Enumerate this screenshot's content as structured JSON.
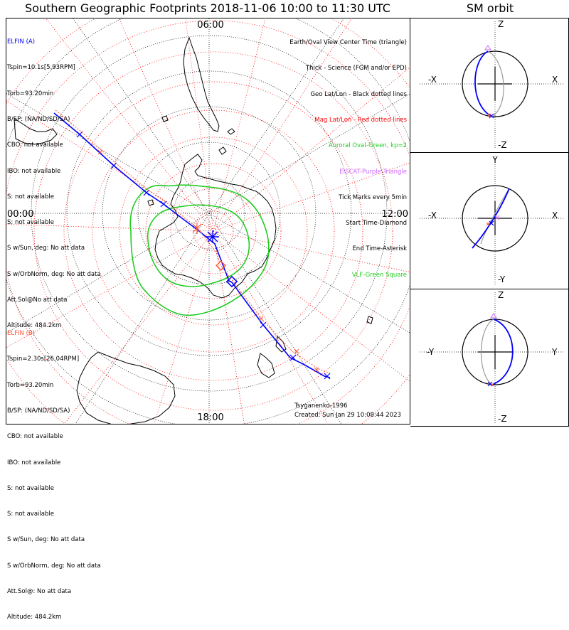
{
  "title": "Southern Geographic Footprints 2018-11-06 10:00 to 11:30 UTC",
  "sm_title": "SM orbit",
  "map": {
    "time_labels": {
      "top": "06:00",
      "left": "00:00",
      "right": "12:00",
      "bottom": "18:00"
    }
  },
  "elfin_a": {
    "name": "ELFIN (A)",
    "color": "#0000ff",
    "lines": [
      "Tspin=10.1s[5.93RPM]",
      "Torb=93.20min",
      "B/SP: (NA/ND/SD/SA)",
      "CBO: not available",
      "IBO: not available",
      "S: not available",
      "S: not available",
      "S w/Sun, deg: No att data",
      "S w/OrbNorm, deg: No att data",
      "Att.Sol@No att data",
      "Altitude: 484.2km"
    ]
  },
  "elfin_b": {
    "name": "ELFIN (B)",
    "color": "#ff5533",
    "lines": [
      "Tspin=2.30s[26.04RPM]",
      "Torb=93.20min",
      "B/SP: (NA/ND/SD/SA)",
      "CBO: not available",
      "IBO: not available",
      "S: not available",
      "S: not available",
      "S w/Sun, deg: No att data",
      "S w/OrbNorm, deg: No att data",
      "Att.Sol@: No att data",
      "Altitude: 484.2km"
    ]
  },
  "legend": [
    {
      "text": "Earth/Oval View Center Time (triangle)",
      "color": "#000000"
    },
    {
      "text": "Thick - Science (FGM and/or EPD)",
      "color": "#000000"
    },
    {
      "text": "Geo Lat/Lon - Black dotted lines",
      "color": "#000000"
    },
    {
      "text": "Mag Lat/Lon - Red dotted lines",
      "color": "#ff0000"
    },
    {
      "text": "Auroral Oval-Green, kp=2",
      "color": "#22cc22"
    },
    {
      "text": "EISCAT-Purple Triangle",
      "color": "#cc66ff"
    },
    {
      "text": "Tick Marks every 5min",
      "color": "#000000"
    },
    {
      "text": "Start Time-Diamond",
      "color": "#000000"
    },
    {
      "text": "End Time-Asterisk",
      "color": "#000000"
    },
    {
      "text": "VLF-Green Square",
      "color": "#22cc22"
    }
  ],
  "credits": {
    "model": "Tsyganenko-1996",
    "created": "Created: Sun Jan 29 10:08:44 2023"
  },
  "sm_panels": [
    {
      "top": "Z",
      "bottom": "-Z",
      "left": "-X",
      "right": "X"
    },
    {
      "top": "Y",
      "bottom": "-Y",
      "left": "-X",
      "right": "X"
    },
    {
      "top": "Z",
      "bottom": "-Z",
      "left": "-Y",
      "right": "Y"
    }
  ],
  "colors": {
    "elfin_a": "#0000ff",
    "elfin_b": "#ff5533",
    "mag_grid": "#ff0000",
    "geo_grid": "#000000",
    "auroral_oval": "#22cc22"
  }
}
